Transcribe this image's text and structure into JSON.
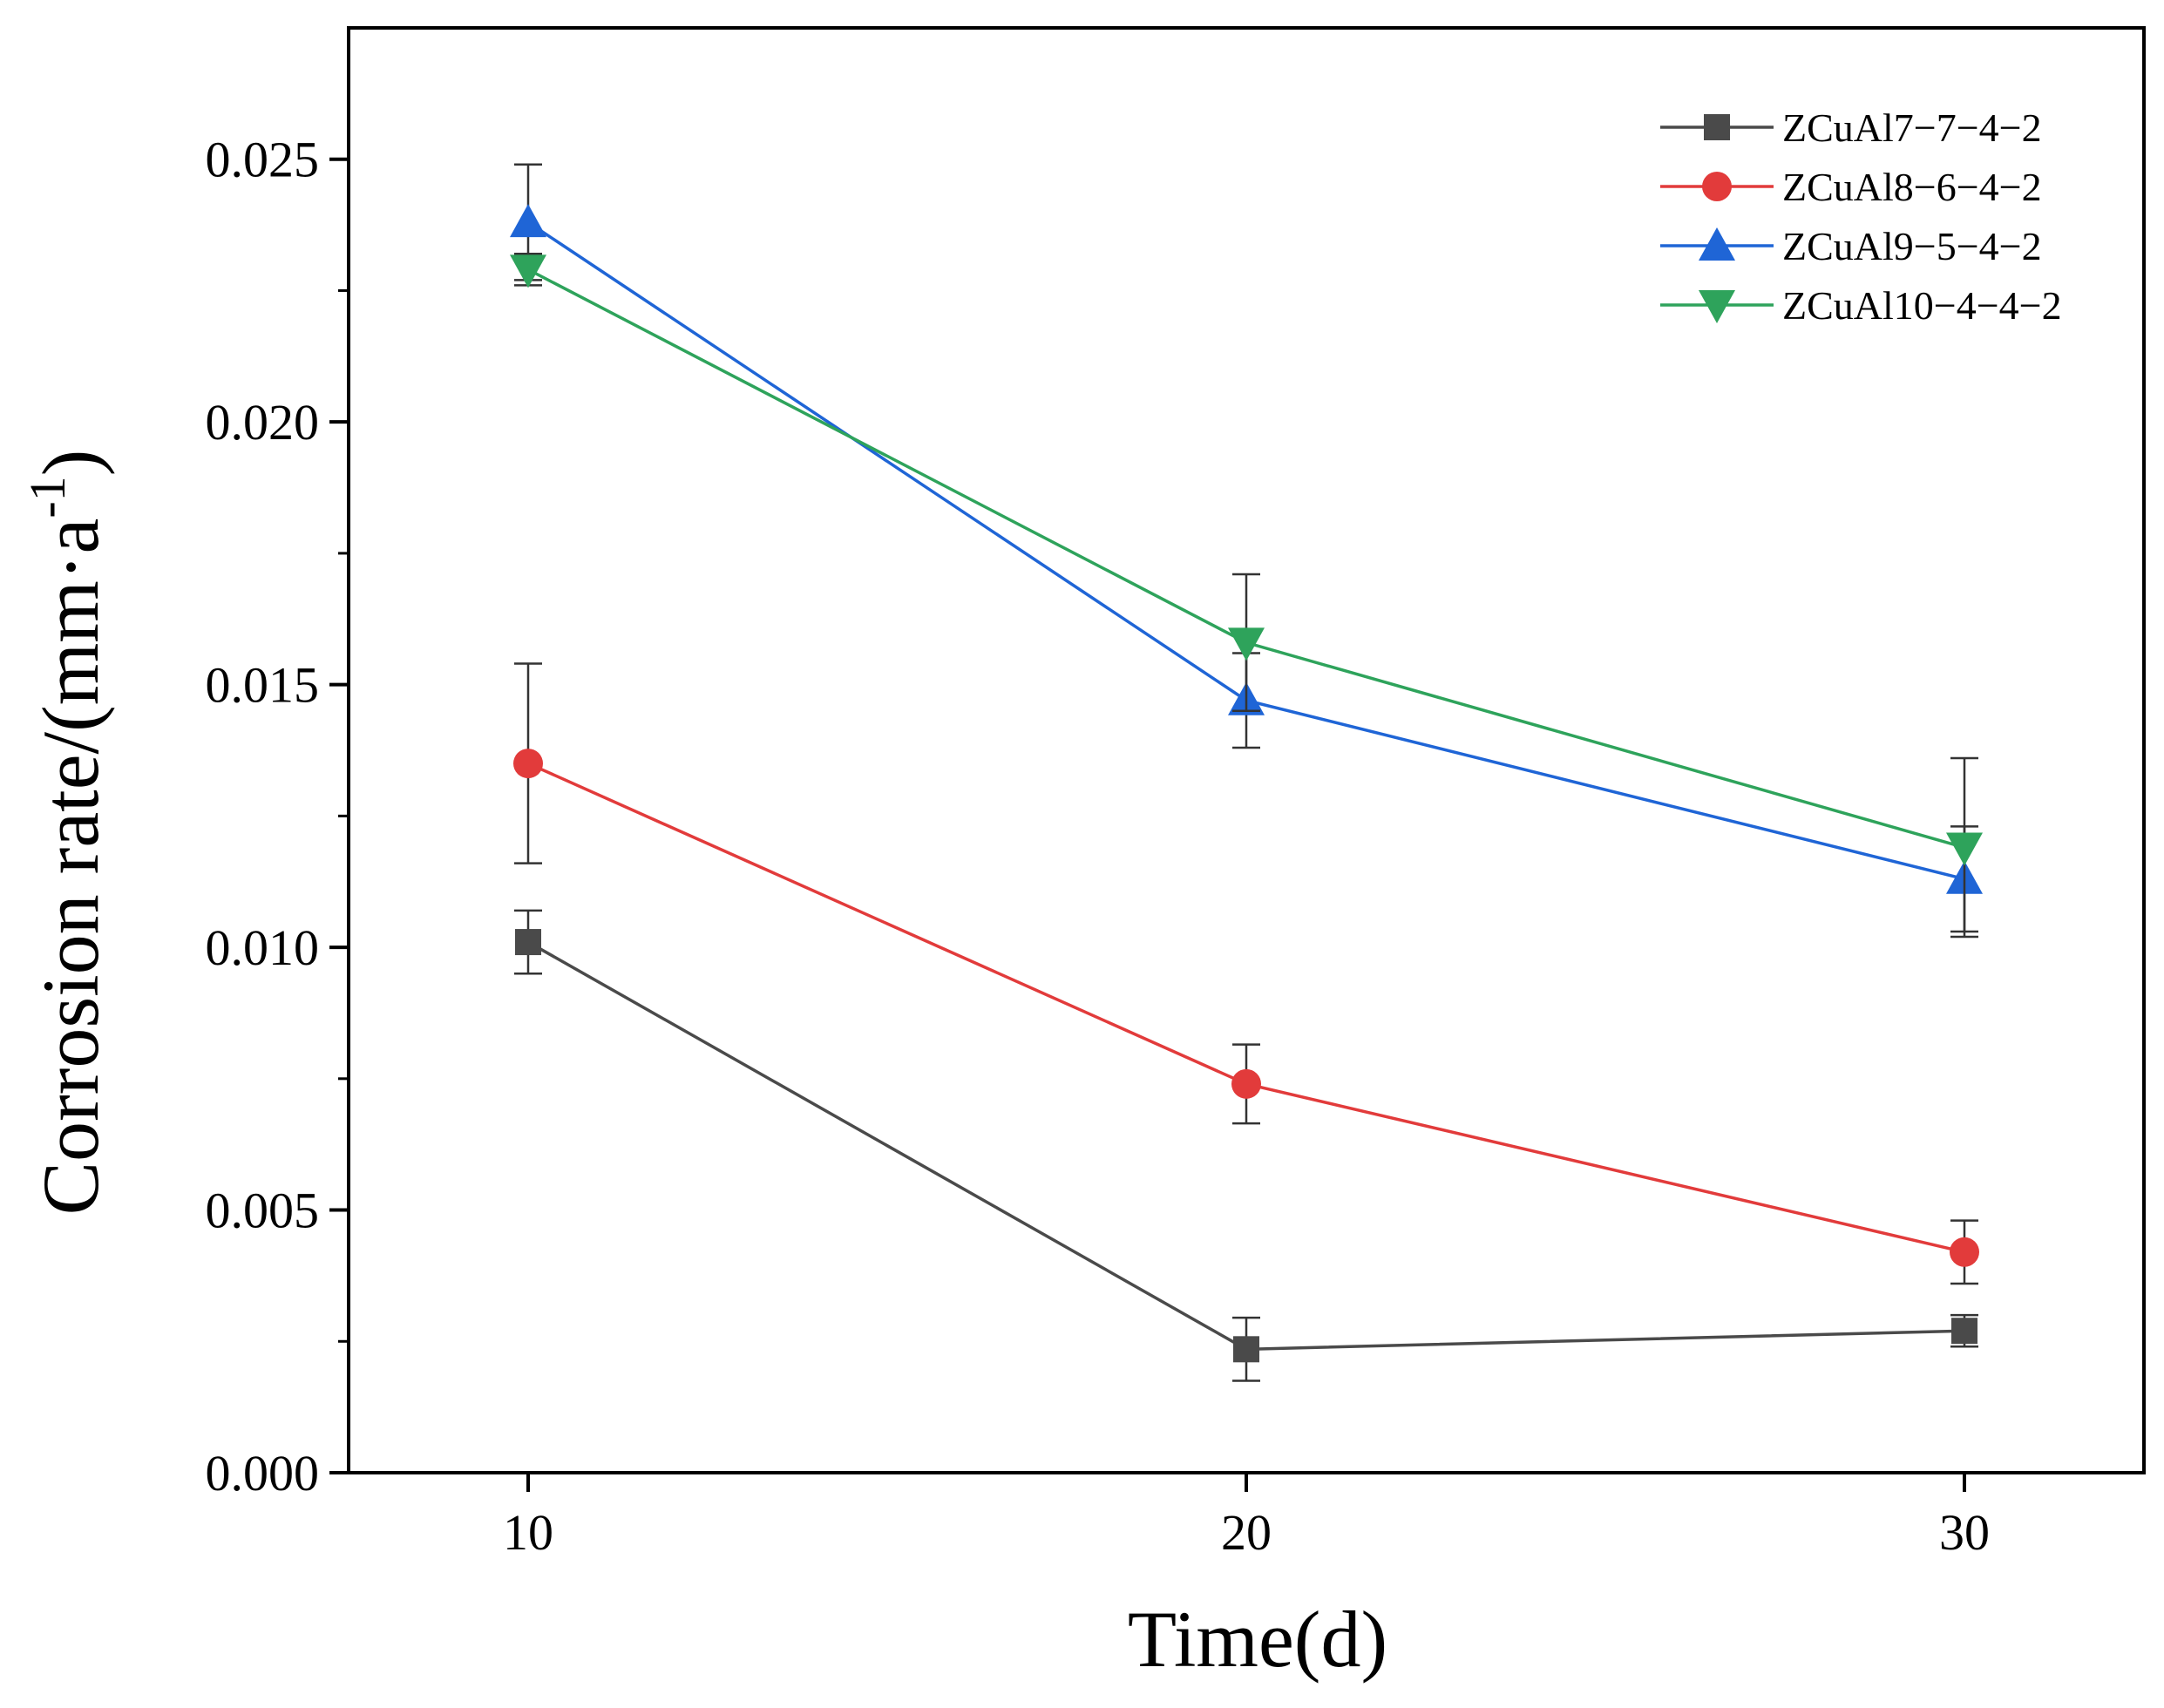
{
  "chart_data": {
    "type": "line",
    "title": "",
    "xlabel": "Time(d)",
    "ylabel": "Corrosion rate/(mm·a",
    "ylabel_superscript": "-1",
    "ylabel_suffix": ")",
    "x": [
      10,
      20,
      30
    ],
    "x_ticks": [
      "10",
      "20",
      "30"
    ],
    "y_ticks": [
      "0.000",
      "0.005",
      "0.010",
      "0.015",
      "0.020",
      "0.025"
    ],
    "xlim": [
      7.5,
      32.5
    ],
    "ylim": [
      0,
      0.0275
    ],
    "legend_position": "top-right",
    "grid": false,
    "series": [
      {
        "name": "ZCuAl7−7−4−2",
        "color": "#4a4a4a",
        "marker": "square",
        "values": [
          0.0101,
          0.00235,
          0.0027
        ],
        "errors": [
          0.0006,
          0.0006,
          0.0003
        ]
      },
      {
        "name": "ZCuAl8−6−4−2",
        "color": "#e23b3b",
        "marker": "circle",
        "values": [
          0.0135,
          0.0074,
          0.0042
        ],
        "errors": [
          0.0019,
          0.00075,
          0.0006
        ]
      },
      {
        "name": "ZCuAl9−5−4−2",
        "color": "#1f65d6",
        "marker": "triangle-up",
        "values": [
          0.0238,
          0.0147,
          0.0113
        ],
        "errors": [
          0.0011,
          0.0009,
          0.001
        ]
      },
      {
        "name": "ZCuAl10−4−4−2",
        "color": "#2ea35b",
        "marker": "triangle-down",
        "values": [
          0.0229,
          0.0158,
          0.0119
        ],
        "errors": [
          0.0003,
          0.0013,
          0.0017
        ]
      }
    ]
  }
}
